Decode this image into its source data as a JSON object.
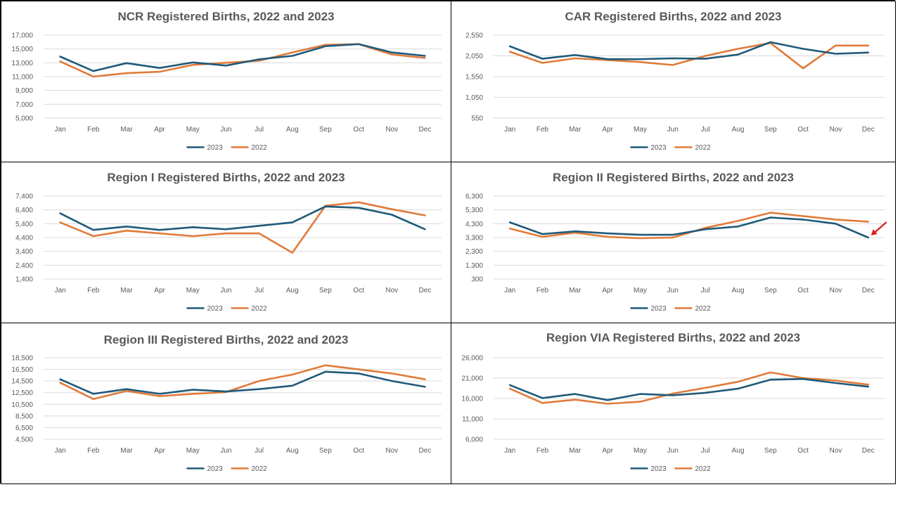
{
  "colors": {
    "s2023": "#1f5a7a",
    "s2022": "#e07b39",
    "grid": "#d9d9d9",
    "text": "#595959",
    "arrow": "#e01e1e"
  },
  "chart_data": [
    {
      "type": "line",
      "title": "NCR Registered Births, 2022 and 2023",
      "categories": [
        "Jan",
        "Feb",
        "Mar",
        "Apr",
        "May",
        "Jun",
        "Jul",
        "Aug",
        "Sep",
        "Oct",
        "Nov",
        "Dec"
      ],
      "yticks": [
        "5,000",
        "7,000",
        "9,000",
        "11,000",
        "13,000",
        "15,000",
        "17,000"
      ],
      "ylim": [
        5000,
        17000
      ],
      "series": [
        {
          "name": "2023",
          "values": [
            13900,
            11800,
            12950,
            12250,
            13050,
            12600,
            13500,
            14000,
            15400,
            15700,
            14500,
            14000
          ]
        },
        {
          "name": "2022",
          "values": [
            13200,
            11000,
            11500,
            11700,
            12700,
            13000,
            13300,
            14500,
            15600,
            15700,
            14200,
            13700
          ]
        }
      ],
      "legend": "bottom"
    },
    {
      "type": "line",
      "title": "CAR Registered Births, 2022 and 2023",
      "categories": [
        "Jan",
        "Feb",
        "Mar",
        "Apr",
        "May",
        "Jun",
        "Jul",
        "Aug",
        "Sep",
        "Oct",
        "Nov",
        "Dec"
      ],
      "yticks": [
        "550",
        "1,050",
        "1,550",
        "2,050",
        "2,550"
      ],
      "ylim": [
        550,
        2550
      ],
      "series": [
        {
          "name": "2023",
          "values": [
            2280,
            1980,
            2070,
            1970,
            1970,
            1990,
            1980,
            2080,
            2380,
            2220,
            2100,
            2130
          ]
        },
        {
          "name": "2022",
          "values": [
            2150,
            1880,
            1990,
            1950,
            1900,
            1830,
            2050,
            2220,
            2360,
            1750,
            2300,
            2300
          ]
        }
      ],
      "legend": "bottom"
    },
    {
      "type": "line",
      "title": "Region I  Registered Births, 2022 and 2023",
      "categories": [
        "Jan",
        "Feb",
        "Mar",
        "Apr",
        "May",
        "Jun",
        "Jul",
        "Aug",
        "Sep",
        "Oct",
        "Nov",
        "Dec"
      ],
      "yticks": [
        "1,400",
        "2,400",
        "3,400",
        "4,400",
        "5,400",
        "6,400",
        "7,400"
      ],
      "ylim": [
        1400,
        7400
      ],
      "series": [
        {
          "name": "2023",
          "values": [
            6150,
            4950,
            5200,
            4950,
            5150,
            5000,
            5250,
            5500,
            6650,
            6550,
            6050,
            5000
          ]
        },
        {
          "name": "2022",
          "values": [
            5500,
            4500,
            4900,
            4700,
            4500,
            4700,
            4700,
            3300,
            6700,
            6950,
            6450,
            6000
          ]
        }
      ],
      "legend": "bottom"
    },
    {
      "type": "line",
      "title": "Region II  Registered Births, 2022 and 2023",
      "categories": [
        "Jan",
        "Feb",
        "Mar",
        "Apr",
        "May",
        "Jun",
        "Jul",
        "Aug",
        "Sep",
        "Oct",
        "Nov",
        "Dec"
      ],
      "yticks": [
        "300",
        "1,300",
        "2,300",
        "3,300",
        "4,300",
        "5,300",
        "6,300"
      ],
      "ylim": [
        300,
        6300
      ],
      "series": [
        {
          "name": "2023",
          "values": [
            4400,
            3550,
            3750,
            3600,
            3500,
            3500,
            3900,
            4100,
            4750,
            4600,
            4300,
            3300
          ]
        },
        {
          "name": "2022",
          "values": [
            3950,
            3350,
            3650,
            3350,
            3250,
            3300,
            4000,
            4500,
            5100,
            4850,
            4600,
            4450
          ]
        }
      ],
      "legend": "bottom"
    },
    {
      "type": "line",
      "title": "Region III  Registered Births, 2022 and 2023",
      "categories": [
        "Jan",
        "Feb",
        "Mar",
        "Apr",
        "May",
        "Jun",
        "Jul",
        "Aug",
        "Sep",
        "Oct",
        "Nov",
        "Dec"
      ],
      "yticks": [
        "4,500",
        "6,500",
        "8,500",
        "10,500",
        "12,500",
        "14,500",
        "16,500",
        "18,500"
      ],
      "ylim": [
        4500,
        18500
      ],
      "series": [
        {
          "name": "2023",
          "values": [
            14800,
            12300,
            13100,
            12300,
            13000,
            12700,
            13100,
            13700,
            16100,
            15800,
            14500,
            13500
          ]
        },
        {
          "name": "2022",
          "values": [
            14200,
            11400,
            12800,
            11900,
            12300,
            12600,
            14500,
            15600,
            17200,
            16500,
            15800,
            14800
          ]
        }
      ],
      "legend": "bottom"
    },
    {
      "type": "line",
      "title": "Region VIA  Registered Births, 2022 and 2023",
      "categories": [
        "Jan",
        "Feb",
        "Mar",
        "Apr",
        "May",
        "Jun",
        "Jul",
        "Aug",
        "Sep",
        "Oct",
        "Nov",
        "Dec"
      ],
      "yticks": [
        "6,000",
        "11,000",
        "16,000",
        "21,000",
        "26,000"
      ],
      "ylim": [
        6000,
        26000
      ],
      "series": [
        {
          "name": "2023",
          "values": [
            19300,
            16100,
            17100,
            15600,
            17100,
            16800,
            17400,
            18400,
            20600,
            20800,
            19800,
            18900
          ]
        },
        {
          "name": "2022",
          "values": [
            18400,
            14900,
            15700,
            14700,
            15200,
            17200,
            18600,
            20100,
            22400,
            21000,
            20400,
            19400
          ]
        }
      ],
      "legend": "bottom"
    }
  ]
}
